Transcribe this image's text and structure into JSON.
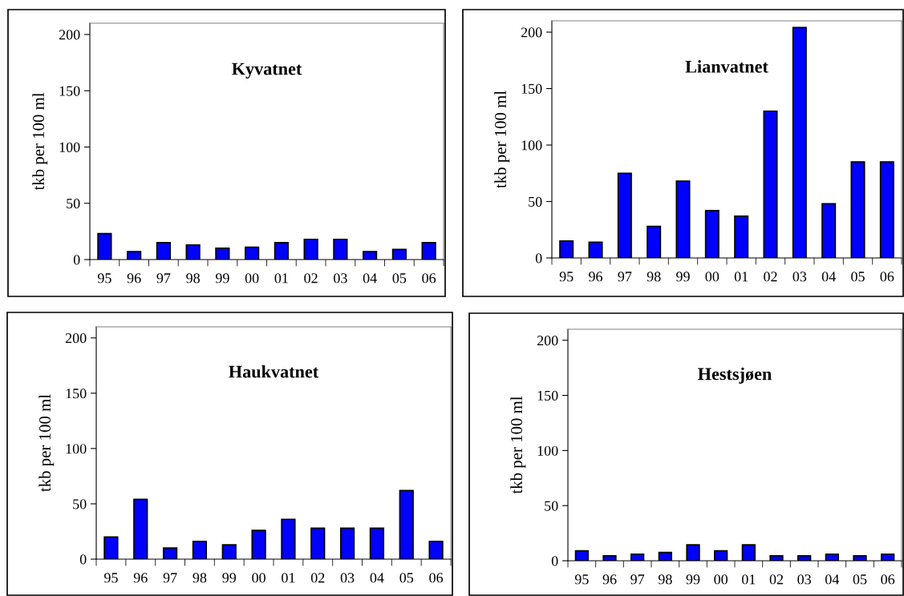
{
  "chart_data": [
    {
      "type": "bar",
      "title": "Kyvatnet",
      "ylabel": "tkb per 100 ml",
      "categories": [
        "95",
        "96",
        "97",
        "98",
        "99",
        "00",
        "01",
        "02",
        "03",
        "04",
        "05",
        "06"
      ],
      "values": [
        23,
        7,
        15,
        13,
        10,
        11,
        15,
        18,
        18,
        7,
        9,
        15
      ],
      "color": "#0000ff",
      "ylim": [
        0,
        210
      ],
      "yticks": [
        0,
        50,
        100,
        150,
        200
      ]
    },
    {
      "type": "bar",
      "title": "Lianvatnet",
      "ylabel": "tkb per 100 ml",
      "categories": [
        "95",
        "96",
        "97",
        "98",
        "99",
        "00",
        "01",
        "02",
        "03",
        "04",
        "05",
        "06"
      ],
      "values": [
        15,
        14,
        75,
        28,
        68,
        42,
        37,
        130,
        204,
        48,
        85,
        85
      ],
      "color": "#0000ff",
      "ylim": [
        0,
        210
      ],
      "yticks": [
        0,
        50,
        100,
        150,
        200
      ]
    },
    {
      "type": "bar",
      "title": "Haukvatnet",
      "ylabel": "tkb per 100 ml",
      "categories": [
        "95",
        "96",
        "97",
        "98",
        "99",
        "00",
        "01",
        "02",
        "03",
        "04",
        "05",
        "06"
      ],
      "values": [
        20,
        54,
        10,
        16,
        13,
        26,
        36,
        28,
        28,
        28,
        62,
        16
      ],
      "color": "#0000ff",
      "ylim": [
        0,
        210
      ],
      "yticks": [
        0,
        50,
        100,
        150,
        200
      ]
    },
    {
      "type": "bar",
      "title": "Hestsjøen",
      "ylabel": "tkb per 100 ml",
      "categories": [
        "95",
        "96",
        "97",
        "98",
        "99",
        "00",
        "01",
        "02",
        "03",
        "04",
        "05",
        "06"
      ],
      "values": [
        9,
        4.5,
        6,
        7.5,
        14.5,
        9,
        14.5,
        4.5,
        4.5,
        6,
        4.5,
        6
      ],
      "color": "#0000ff",
      "ylim": [
        0,
        210
      ],
      "yticks": [
        0,
        50,
        100,
        150,
        200
      ]
    }
  ]
}
